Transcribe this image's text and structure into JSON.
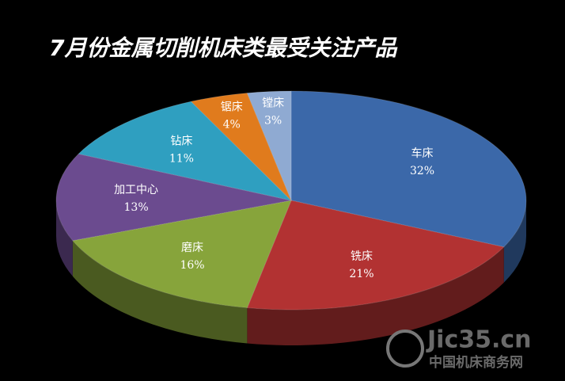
{
  "chart_data": {
    "type": "pie",
    "title": "7月份金属切削机床类最受关注产品",
    "categories": [
      "车床",
      "铣床",
      "磨床",
      "加工中心",
      "钻床",
      "锯床",
      "镗床"
    ],
    "values": [
      32,
      21,
      16,
      13,
      11,
      4,
      3
    ],
    "value_labels": [
      "32%",
      "21%",
      "16%",
      "13%",
      "11%",
      "4%",
      "3%"
    ],
    "colors": [
      "#3b68a9",
      "#b23232",
      "#87a43b",
      "#6b4b8f",
      "#2f9fc0",
      "#e07b1d",
      "#8faad2"
    ],
    "watermark": {
      "text": "Jic35.cn",
      "subtitle": "中国机床商务网"
    }
  }
}
